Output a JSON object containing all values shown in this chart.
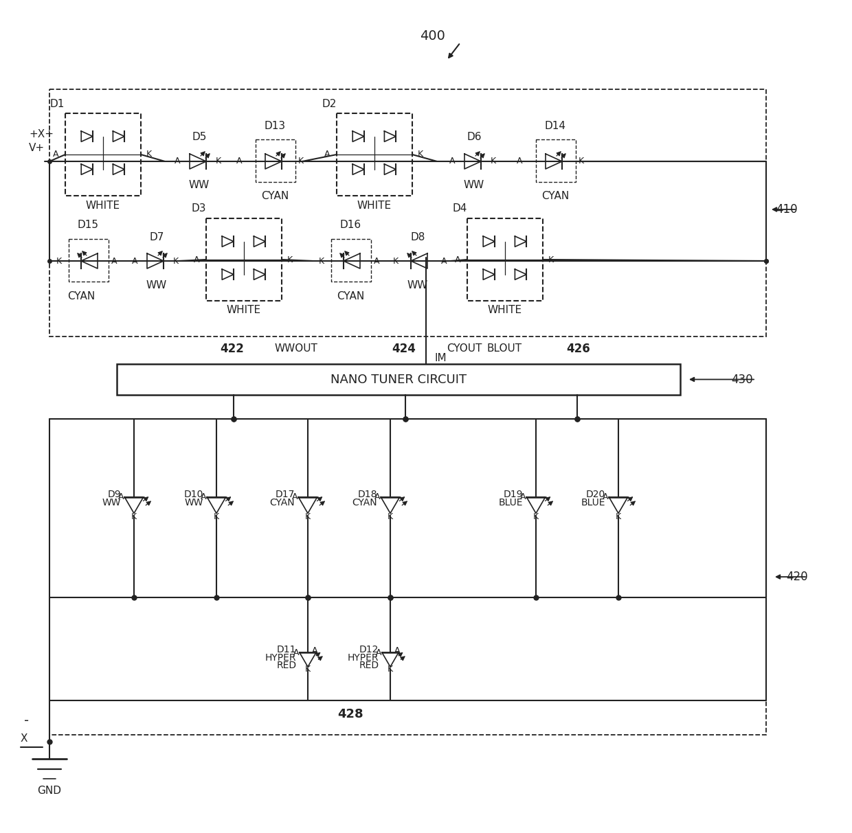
{
  "bg": "#ffffff",
  "lc": "#222222",
  "fig_ref": "400",
  "box410": "410",
  "box420": "420",
  "nano_label": "NANO TUNER CIRCUIT",
  "box430": "430",
  "im_label": "IM",
  "gnd": "GND",
  "label_422": "422",
  "label_424": "424",
  "label_426": "426",
  "label_428": "428",
  "wwout": "WWOUT",
  "cyout": "CYOUT",
  "blout": "BLOUT",
  "vplus": "+X+",
  "vminus": "-",
  "xminus": "X"
}
